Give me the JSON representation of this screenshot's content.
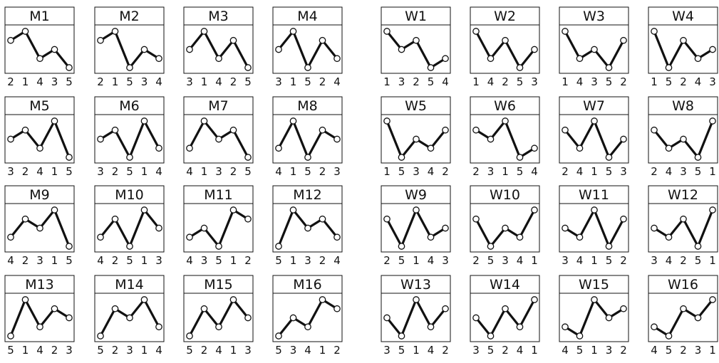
{
  "chart_data": [
    {
      "type": "line",
      "title": "M1",
      "categories": [
        "2",
        "1",
        "4",
        "3",
        "5"
      ],
      "values": [
        4,
        5,
        2,
        3,
        1
      ],
      "ylim": [
        1,
        5
      ],
      "grid": false
    },
    {
      "type": "line",
      "title": "M2",
      "categories": [
        "2",
        "1",
        "5",
        "3",
        "4"
      ],
      "values": [
        4,
        5,
        1,
        3,
        2
      ],
      "ylim": [
        1,
        5
      ],
      "grid": false
    },
    {
      "type": "line",
      "title": "M3",
      "categories": [
        "3",
        "1",
        "4",
        "2",
        "5"
      ],
      "values": [
        3,
        5,
        2,
        4,
        1
      ],
      "ylim": [
        1,
        5
      ],
      "grid": false
    },
    {
      "type": "line",
      "title": "M4",
      "categories": [
        "3",
        "1",
        "5",
        "2",
        "4"
      ],
      "values": [
        3,
        5,
        1,
        4,
        2
      ],
      "ylim": [
        1,
        5
      ],
      "grid": false
    },
    {
      "type": "line",
      "title": "M5",
      "categories": [
        "3",
        "2",
        "4",
        "1",
        "5"
      ],
      "values": [
        3,
        4,
        2,
        5,
        1
      ],
      "ylim": [
        1,
        5
      ],
      "grid": false
    },
    {
      "type": "line",
      "title": "M6",
      "categories": [
        "3",
        "2",
        "5",
        "1",
        "4"
      ],
      "values": [
        3,
        4,
        1,
        5,
        2
      ],
      "ylim": [
        1,
        5
      ],
      "grid": false
    },
    {
      "type": "line",
      "title": "M7",
      "categories": [
        "4",
        "1",
        "3",
        "2",
        "5"
      ],
      "values": [
        2,
        5,
        3,
        4,
        1
      ],
      "ylim": [
        1,
        5
      ],
      "grid": false
    },
    {
      "type": "line",
      "title": "M8",
      "categories": [
        "4",
        "1",
        "5",
        "2",
        "3"
      ],
      "values": [
        2,
        5,
        1,
        4,
        3
      ],
      "ylim": [
        1,
        5
      ],
      "grid": false
    },
    {
      "type": "line",
      "title": "M9",
      "categories": [
        "4",
        "2",
        "3",
        "1",
        "5"
      ],
      "values": [
        2,
        4,
        3,
        5,
        1
      ],
      "ylim": [
        1,
        5
      ],
      "grid": false
    },
    {
      "type": "line",
      "title": "M10",
      "categories": [
        "4",
        "2",
        "5",
        "1",
        "3"
      ],
      "values": [
        2,
        4,
        1,
        5,
        3
      ],
      "ylim": [
        1,
        5
      ],
      "grid": false
    },
    {
      "type": "line",
      "title": "M11",
      "categories": [
        "4",
        "3",
        "5",
        "1",
        "2"
      ],
      "values": [
        2,
        3,
        1,
        5,
        4
      ],
      "ylim": [
        1,
        5
      ],
      "grid": false
    },
    {
      "type": "line",
      "title": "M12",
      "categories": [
        "5",
        "1",
        "3",
        "2",
        "4"
      ],
      "values": [
        1,
        5,
        3,
        4,
        2
      ],
      "ylim": [
        1,
        5
      ],
      "grid": false
    },
    {
      "type": "line",
      "title": "M13",
      "categories": [
        "5",
        "1",
        "4",
        "2",
        "3"
      ],
      "values": [
        1,
        5,
        2,
        4,
        3
      ],
      "ylim": [
        1,
        5
      ],
      "grid": false
    },
    {
      "type": "line",
      "title": "M14",
      "categories": [
        "5",
        "2",
        "3",
        "1",
        "4"
      ],
      "values": [
        1,
        4,
        3,
        5,
        2
      ],
      "ylim": [
        1,
        5
      ],
      "grid": false
    },
    {
      "type": "line",
      "title": "M15",
      "categories": [
        "5",
        "2",
        "4",
        "1",
        "3"
      ],
      "values": [
        1,
        4,
        2,
        5,
        3
      ],
      "ylim": [
        1,
        5
      ],
      "grid": false
    },
    {
      "type": "line",
      "title": "M16",
      "categories": [
        "5",
        "3",
        "4",
        "1",
        "2"
      ],
      "values": [
        1,
        3,
        2,
        5,
        4
      ],
      "ylim": [
        1,
        5
      ],
      "grid": false
    },
    {
      "type": "line",
      "title": "W1",
      "categories": [
        "1",
        "3",
        "2",
        "5",
        "4"
      ],
      "values": [
        5,
        3,
        4,
        1,
        2
      ],
      "ylim": [
        1,
        5
      ],
      "grid": false
    },
    {
      "type": "line",
      "title": "W2",
      "categories": [
        "1",
        "4",
        "2",
        "5",
        "3"
      ],
      "values": [
        5,
        2,
        4,
        1,
        3
      ],
      "ylim": [
        1,
        5
      ],
      "grid": false
    },
    {
      "type": "line",
      "title": "W3",
      "categories": [
        "1",
        "4",
        "3",
        "5",
        "2"
      ],
      "values": [
        5,
        2,
        3,
        1,
        4
      ],
      "ylim": [
        1,
        5
      ],
      "grid": false
    },
    {
      "type": "line",
      "title": "W4",
      "categories": [
        "1",
        "5",
        "2",
        "4",
        "3"
      ],
      "values": [
        5,
        1,
        4,
        2,
        3
      ],
      "ylim": [
        1,
        5
      ],
      "grid": false
    },
    {
      "type": "line",
      "title": "W5",
      "categories": [
        "1",
        "5",
        "3",
        "4",
        "2"
      ],
      "values": [
        5,
        1,
        3,
        2,
        4
      ],
      "ylim": [
        1,
        5
      ],
      "grid": false
    },
    {
      "type": "line",
      "title": "W6",
      "categories": [
        "2",
        "3",
        "1",
        "5",
        "4"
      ],
      "values": [
        4,
        3,
        5,
        1,
        2
      ],
      "ylim": [
        1,
        5
      ],
      "grid": false
    },
    {
      "type": "line",
      "title": "W7",
      "categories": [
        "2",
        "4",
        "1",
        "5",
        "3"
      ],
      "values": [
        4,
        2,
        5,
        1,
        3
      ],
      "ylim": [
        1,
        5
      ],
      "grid": false
    },
    {
      "type": "line",
      "title": "W8",
      "categories": [
        "2",
        "4",
        "3",
        "5",
        "1"
      ],
      "values": [
        4,
        2,
        3,
        1,
        5
      ],
      "ylim": [
        1,
        5
      ],
      "grid": false
    },
    {
      "type": "line",
      "title": "W9",
      "categories": [
        "2",
        "5",
        "1",
        "4",
        "3"
      ],
      "values": [
        4,
        1,
        5,
        2,
        3
      ],
      "ylim": [
        1,
        5
      ],
      "grid": false
    },
    {
      "type": "line",
      "title": "W10",
      "categories": [
        "2",
        "5",
        "3",
        "4",
        "1"
      ],
      "values": [
        4,
        1,
        3,
        2,
        5
      ],
      "ylim": [
        1,
        5
      ],
      "grid": false
    },
    {
      "type": "line",
      "title": "W11",
      "categories": [
        "3",
        "4",
        "1",
        "5",
        "2"
      ],
      "values": [
        3,
        2,
        5,
        1,
        4
      ],
      "ylim": [
        1,
        5
      ],
      "grid": false
    },
    {
      "type": "line",
      "title": "W12",
      "categories": [
        "3",
        "4",
        "2",
        "5",
        "1"
      ],
      "values": [
        3,
        2,
        4,
        1,
        5
      ],
      "ylim": [
        1,
        5
      ],
      "grid": false
    },
    {
      "type": "line",
      "title": "W13",
      "categories": [
        "3",
        "5",
        "1",
        "4",
        "2"
      ],
      "values": [
        3,
        1,
        5,
        2,
        4
      ],
      "ylim": [
        1,
        5
      ],
      "grid": false
    },
    {
      "type": "line",
      "title": "W14",
      "categories": [
        "3",
        "5",
        "2",
        "4",
        "1"
      ],
      "values": [
        3,
        1,
        4,
        2,
        5
      ],
      "ylim": [
        1,
        5
      ],
      "grid": false
    },
    {
      "type": "line",
      "title": "W15",
      "categories": [
        "4",
        "5",
        "1",
        "3",
        "2"
      ],
      "values": [
        2,
        1,
        5,
        3,
        4
      ],
      "ylim": [
        1,
        5
      ],
      "grid": false
    },
    {
      "type": "line",
      "title": "W16",
      "categories": [
        "4",
        "5",
        "2",
        "3",
        "1"
      ],
      "values": [
        2,
        1,
        4,
        3,
        5
      ],
      "ylim": [
        1,
        5
      ],
      "grid": false
    }
  ]
}
